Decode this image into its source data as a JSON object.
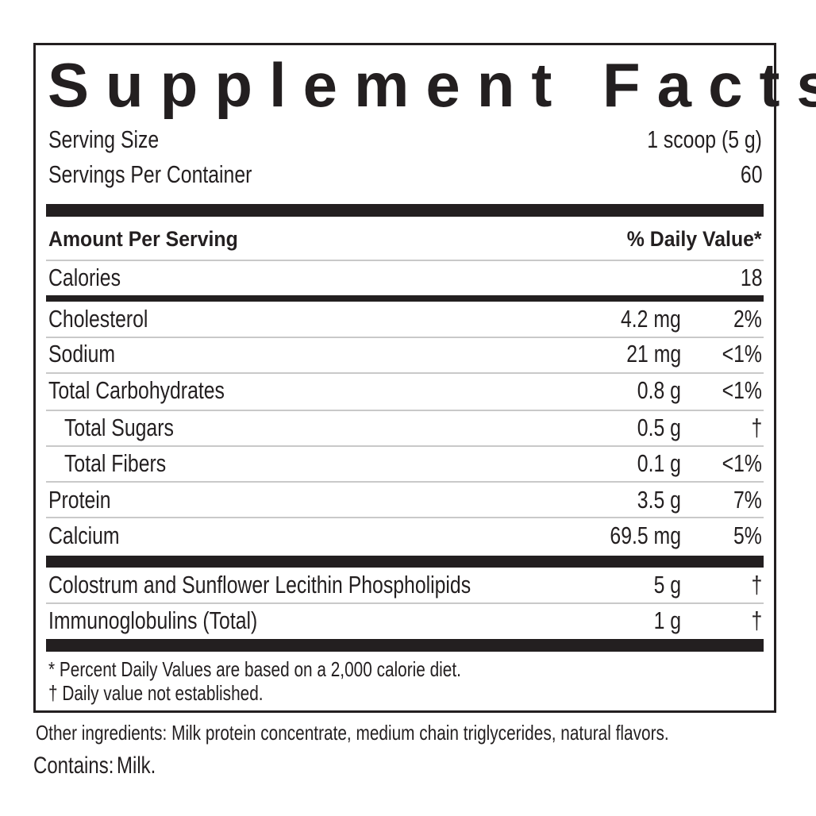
{
  "title": "Supplement Facts",
  "serving_size": {
    "label": "Serving Size",
    "value": "1 scoop (5 g)"
  },
  "servings_per_container": {
    "label": "Servings Per Container",
    "value": "60"
  },
  "header": {
    "amount": "Amount Per Serving",
    "dv": "% Daily Value*"
  },
  "calories": {
    "label": "Calories",
    "value": "18"
  },
  "nutrients": [
    {
      "name": "Cholesterol",
      "amount": "4.2 mg",
      "dv": "2%"
    },
    {
      "name": "Sodium",
      "amount": "21 mg",
      "dv": "<1%"
    },
    {
      "name": "Total Carbohydrates",
      "amount": "0.8 g",
      "dv": "<1%"
    },
    {
      "name": "Total Sugars",
      "amount": "0.5 g",
      "dv": "†"
    },
    {
      "name": "Total Fibers",
      "amount": "0.1 g",
      "dv": "<1%"
    },
    {
      "name": "Protein",
      "amount": "3.5 g",
      "dv": "7%"
    },
    {
      "name": "Calcium",
      "amount": "69.5 mg",
      "dv": "5%"
    }
  ],
  "other_nutrients": [
    {
      "name": "Colostrum and Sunflower Lecithin Phospholipids",
      "amount": "5 g",
      "dv": "†"
    },
    {
      "name": "Immunoglobulins (Total)",
      "amount": "1 g",
      "dv": "†"
    }
  ],
  "footnotes": [
    "* Percent Daily Values are based on a 2,000 calorie diet.",
    "† Daily value not established."
  ],
  "other_ingredients": "Other ingredients: Milk protein concentrate, medium chain triglycerides, natural flavors.",
  "contains": {
    "label": "Contains:",
    "value": "Milk."
  }
}
